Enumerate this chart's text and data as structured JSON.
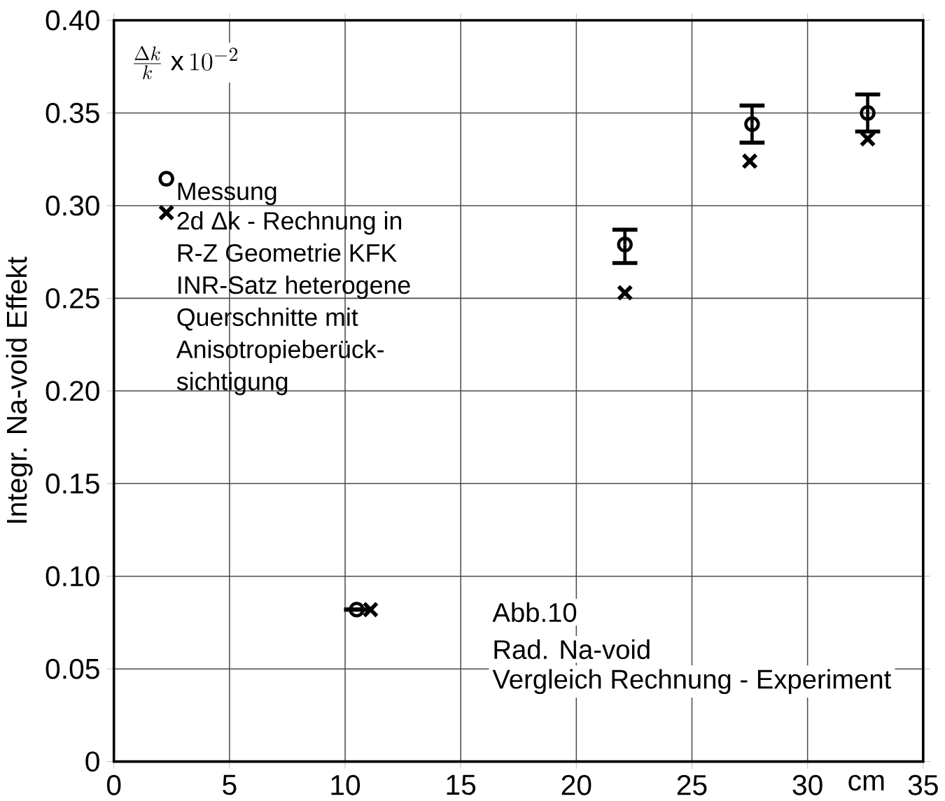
{
  "chart_data": {
    "type": "scatter",
    "xlabel": "cm",
    "ylabel": "Integr. Na-void Effekt",
    "xlim": [
      0,
      35
    ],
    "xticks": [
      0,
      5,
      10,
      15,
      20,
      25,
      30,
      35
    ],
    "ylim": [
      0,
      0.4
    ],
    "yticks": [
      0,
      0.05,
      {
        "value": 0.1,
        "label": "0.10"
      },
      0.15,
      {
        "value": 0.2,
        "label": "0.20"
      },
      0.25,
      {
        "value": 0.3,
        "label": "0.30"
      },
      0.35,
      {
        "value": 0.4,
        "label": "0.40"
      }
    ],
    "grid": true,
    "legend": "top left",
    "annotations": [
      "\\frac{\\Delta k}{k}\\ \\mathrm{x}\\,10^{-2}",
      "Abb.10",
      "Rad. Na-void",
      "Vergleich Rechnung - Experiment"
    ],
    "series": [
      {
        "name": "Messung",
        "color": "#000000",
        "marker": "circle",
        "x": [
          10.5,
          22.1,
          27.6,
          32.6
        ],
        "values": [
          0.082,
          0.279,
          0.344,
          0.35
        ],
        "errors": [
          null,
          [
            0.269,
            0.287
          ],
          [
            0.334,
            0.354
          ],
          [
            0.34,
            0.36
          ]
        ]
      },
      {
        "name": "2d Δk - Rechnung in R-Z Geometrie KFK INR-Satz heterogene Querschnitte mit Anisotropieberück-sichtigung",
        "color": "#000000",
        "marker": "cross",
        "x": [
          11.1,
          22.1,
          27.5,
          32.6
        ],
        "values": [
          0.082,
          0.253,
          0.324,
          0.336
        ]
      }
    ]
  }
}
